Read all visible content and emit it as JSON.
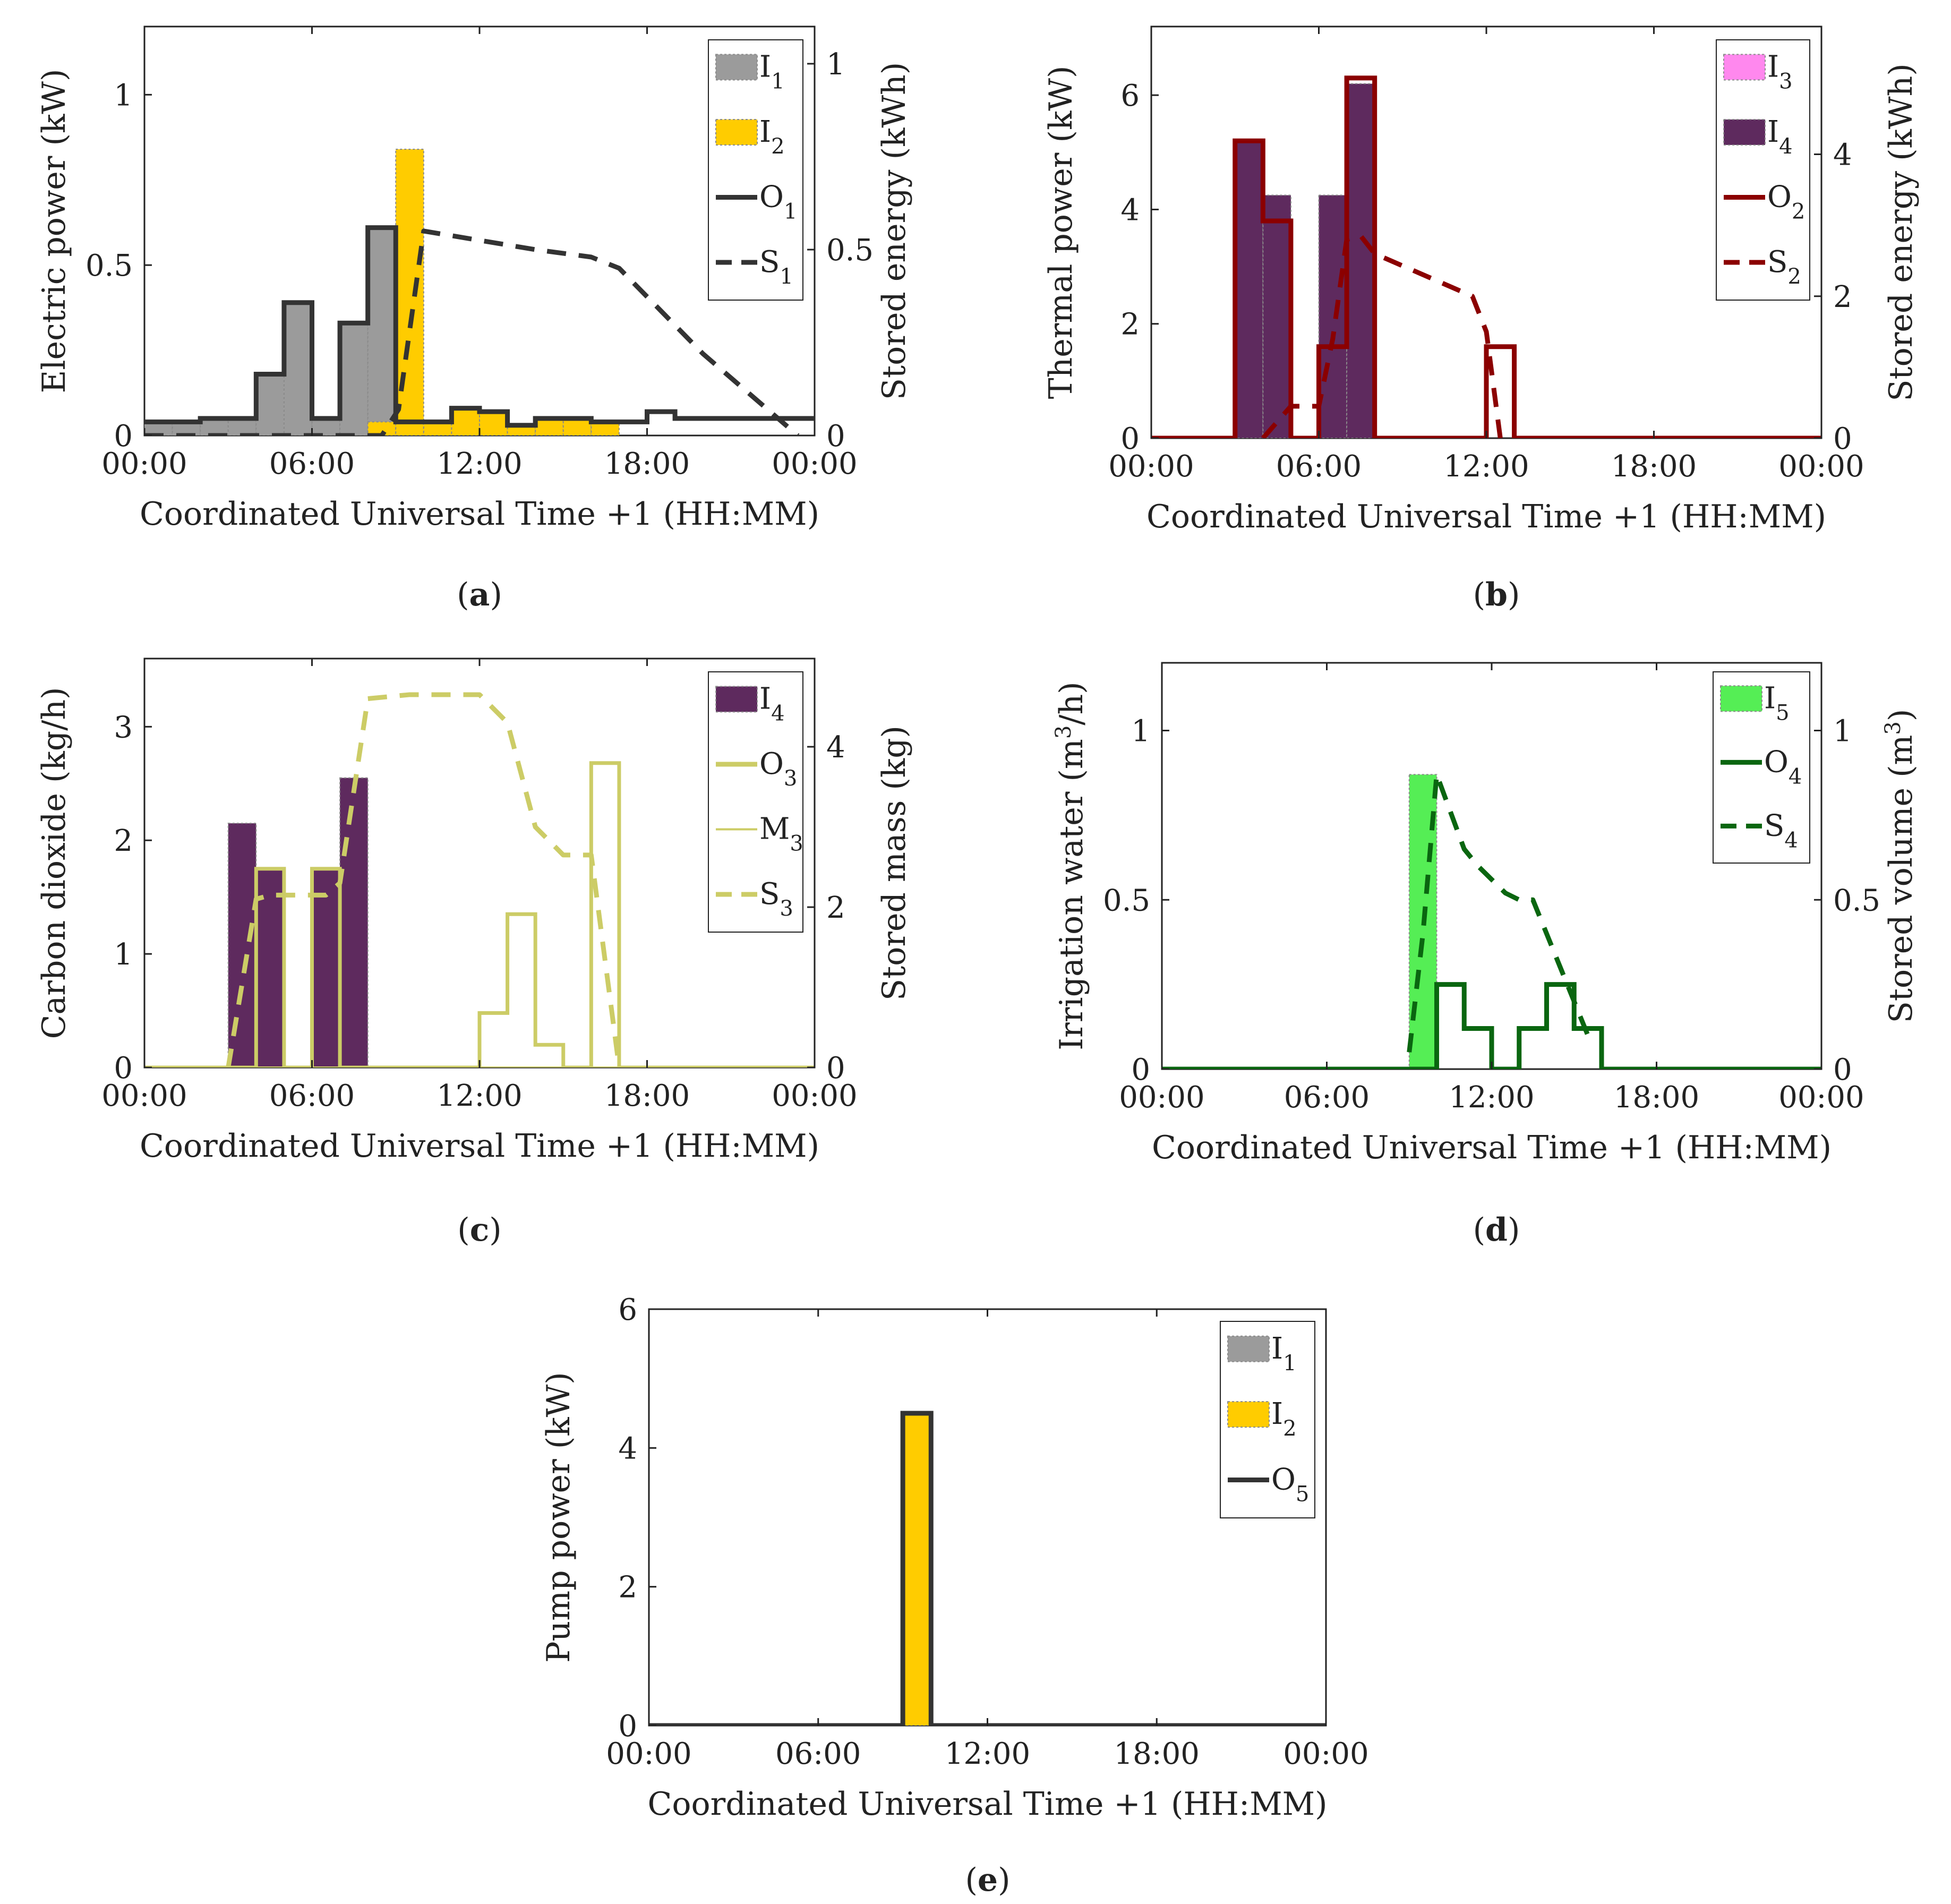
{
  "figure": {
    "x_ticks": [
      "00:00",
      "06:00",
      "12:00",
      "18:00",
      "00:00"
    ]
  },
  "colors": {
    "gray": "#9b9b9b",
    "yellow": "#ffcc00",
    "dark": "#333333",
    "magenta": "#ff88ee",
    "purple": "#5e2a5e",
    "red": "#8b0000",
    "olive": "#cccc66",
    "green": "#55ee55",
    "dkgreen": "#0a6610"
  },
  "chart_data": [
    {
      "id": "a",
      "type": "bar",
      "caption_open": "(",
      "caption_letter": "a",
      "caption_close": ")",
      "xlabel": "Coordinated Universal Time +1 (HH:MM)",
      "ylabel_left": "Electric power (kW)",
      "ylabel_right": "Stored energy (kWh)",
      "xlim": [
        0,
        24
      ],
      "ylim_left": [
        0,
        1.2
      ],
      "ylim_right": [
        0,
        1.1
      ],
      "yticks_left": [
        0,
        0.5,
        1
      ],
      "yticks_left_labels": [
        "0",
        "0.5",
        "1"
      ],
      "yticks_right": [
        0,
        0.5,
        1
      ],
      "yticks_right_labels": [
        "0",
        "0.5",
        "1"
      ],
      "legend": [
        {
          "base": "I",
          "sub": "1",
          "kind": "patch",
          "series": "I1"
        },
        {
          "base": "I",
          "sub": "2",
          "kind": "patch",
          "series": "I2"
        },
        {
          "base": "O",
          "sub": "1",
          "kind": "solid",
          "series": "O1"
        },
        {
          "base": "S",
          "sub": "1",
          "kind": "dash",
          "series": "S1"
        }
      ],
      "series": [
        {
          "name": "I1",
          "kind": "bars",
          "color": "gray",
          "axis": "left",
          "values": [
            0.04,
            0.04,
            0.05,
            0.05,
            0.18,
            0.39,
            0.05,
            0.33,
            0.61,
            0,
            0,
            0,
            0,
            0,
            0,
            0,
            0,
            0,
            0,
            0,
            0,
            0,
            0,
            0
          ]
        },
        {
          "name": "I2",
          "kind": "bars",
          "color": "yellow",
          "axis": "left",
          "values": [
            0,
            0,
            0,
            0,
            0,
            0,
            0,
            0,
            0.04,
            0.84,
            0.04,
            0.08,
            0.07,
            0.03,
            0.05,
            0.05,
            0.04,
            0,
            0,
            0,
            0,
            0,
            0,
            0
          ]
        },
        {
          "name": "O1",
          "kind": "step",
          "color": "dark",
          "axis": "left",
          "width": 9,
          "values": [
            0.04,
            0.04,
            0.05,
            0.05,
            0.18,
            0.39,
            0.05,
            0.33,
            0.61,
            0.04,
            0.04,
            0.08,
            0.07,
            0.03,
            0.05,
            0.05,
            0.04,
            0.04,
            0.07,
            0.05,
            0.05,
            0.05,
            0.05,
            0.05
          ]
        },
        {
          "name": "S1",
          "kind": "dash",
          "color": "dark",
          "axis": "right",
          "x": [
            0,
            8.5,
            9.1,
            10,
            14,
            16,
            17,
            20,
            23.4
          ],
          "y": [
            0,
            0,
            0.07,
            0.55,
            0.5,
            0.48,
            0.45,
            0.22,
            0
          ]
        }
      ]
    },
    {
      "id": "b",
      "type": "bar",
      "caption_open": "(",
      "caption_letter": "b",
      "caption_close": ")",
      "xlabel": "Coordinated Universal Time +1 (HH:MM)",
      "ylabel_left": "Thermal power  (kW)",
      "ylabel_right": "Stored energy (kWh)",
      "xlim": [
        0,
        24
      ],
      "ylim_left": [
        0,
        7.2
      ],
      "ylim_right": [
        0,
        5.8
      ],
      "yticks_left": [
        0,
        2,
        4,
        6
      ],
      "yticks_left_labels": [
        "0",
        "2",
        "4",
        "6"
      ],
      "yticks_right": [
        0,
        2,
        4
      ],
      "yticks_right_labels": [
        "0",
        "2",
        "4"
      ],
      "legend": [
        {
          "base": "I",
          "sub": "3",
          "kind": "patch",
          "series": "I3"
        },
        {
          "base": "I",
          "sub": "4",
          "kind": "patch",
          "series": "I4"
        },
        {
          "base": "O",
          "sub": "2",
          "kind": "solid",
          "series": "O2"
        },
        {
          "base": "S",
          "sub": "2",
          "kind": "dash",
          "series": "S2"
        }
      ],
      "series": [
        {
          "name": "I3",
          "kind": "bars",
          "color": "magenta",
          "axis": "left",
          "values": [
            0,
            0,
            0,
            0,
            0,
            0,
            0,
            0,
            0,
            0,
            0,
            0,
            0,
            0,
            0,
            0,
            0,
            0,
            0,
            0,
            0,
            0,
            0,
            0
          ]
        },
        {
          "name": "I4",
          "kind": "bars",
          "color": "purple",
          "axis": "left",
          "values": [
            0,
            0,
            0,
            5.2,
            4.25,
            0,
            4.25,
            6.2,
            0,
            0,
            0,
            0,
            0,
            0,
            0,
            0,
            0,
            0,
            0,
            0,
            0,
            0,
            0,
            0
          ]
        },
        {
          "name": "O2",
          "kind": "step",
          "color": "red",
          "axis": "left",
          "width": 9,
          "values": [
            0,
            0,
            0,
            5.2,
            3.8,
            0,
            1.6,
            6.3,
            0,
            0,
            0,
            0,
            1.6,
            0,
            0,
            0,
            0,
            0,
            0,
            0,
            0,
            0,
            0,
            0
          ]
        },
        {
          "name": "S2",
          "kind": "dash",
          "color": "red",
          "axis": "right",
          "x": [
            4,
            5,
            6,
            6.5,
            7,
            7.5,
            8,
            11.5,
            12,
            12.5
          ],
          "y": [
            0,
            0.45,
            0.45,
            1.4,
            2.8,
            2.85,
            2.6,
            2.0,
            1.5,
            0
          ]
        }
      ]
    },
    {
      "id": "c",
      "type": "bar",
      "caption_open": "(",
      "caption_letter": "c",
      "caption_close": ")",
      "xlabel": "Coordinated Universal Time +1 (HH:MM)",
      "ylabel_left": "Carbon dioxide (kg/h)",
      "ylabel_right": "Stored mass (kg)",
      "xlim": [
        0,
        24
      ],
      "ylim_left": [
        0,
        3.6
      ],
      "ylim_right": [
        0,
        5.1
      ],
      "yticks_left": [
        0,
        1,
        2,
        3
      ],
      "yticks_left_labels": [
        "0",
        "1",
        "2",
        "3"
      ],
      "yticks_right": [
        0,
        2,
        4
      ],
      "yticks_right_labels": [
        "0",
        "2",
        "4"
      ],
      "legend": [
        {
          "base": "I",
          "sub": "4",
          "kind": "patch",
          "series": "I4"
        },
        {
          "base": "O",
          "sub": "3",
          "kind": "solid",
          "series": "O3"
        },
        {
          "base": "M",
          "sub": "3",
          "kind": "thin",
          "series": "M3"
        },
        {
          "base": "S",
          "sub": "3",
          "kind": "dash",
          "series": "S3"
        }
      ],
      "series": [
        {
          "name": "I4",
          "kind": "bars",
          "color": "purple",
          "axis": "left",
          "values": [
            0,
            0,
            0,
            2.15,
            1.75,
            0,
            1.75,
            2.55,
            0,
            0,
            0,
            0,
            0,
            0,
            0,
            0,
            0,
            0,
            0,
            0,
            0,
            0,
            0,
            0
          ]
        },
        {
          "name": "O3",
          "kind": "step",
          "color": "olive",
          "axis": "left",
          "width": 7,
          "values": [
            0,
            0,
            0,
            0,
            1.75,
            0,
            1.75,
            0,
            0,
            0,
            0,
            0,
            0.48,
            1.35,
            0.2,
            0,
            2.68,
            0,
            0,
            0,
            0,
            0,
            0,
            0
          ]
        },
        {
          "name": "M3",
          "kind": "step",
          "color": "olive",
          "axis": "left",
          "width": 4,
          "values": [
            0,
            0,
            0,
            0,
            0,
            0,
            0,
            0,
            0,
            0,
            0,
            0,
            0,
            0,
            0,
            0,
            0,
            0,
            0,
            0,
            0,
            0,
            0,
            0
          ]
        },
        {
          "name": "S3",
          "kind": "dash",
          "color": "olive",
          "axis": "right",
          "x": [
            3,
            4,
            4.5,
            5,
            6.5,
            7,
            8,
            9.5,
            12,
            13,
            14,
            15,
            16,
            17
          ],
          "y": [
            0,
            2.1,
            2.15,
            2.15,
            2.15,
            2.3,
            4.6,
            4.65,
            4.65,
            4.3,
            3.0,
            2.65,
            2.65,
            0
          ]
        }
      ]
    },
    {
      "id": "d",
      "type": "bar",
      "caption_open": "(",
      "caption_letter": "d",
      "caption_close": ")",
      "xlabel": "Coordinated Universal Time +1 (HH:MM)",
      "ylabel_left_main": "Irrigation water (m",
      "ylabel_left_sup": "3",
      "ylabel_left_tail": "/h)",
      "ylabel_right_main": "Stored volume (m",
      "ylabel_right_sup": "3",
      "ylabel_right_tail": ")",
      "xlim": [
        0,
        24
      ],
      "ylim_left": [
        0,
        1.2
      ],
      "ylim_right": [
        0,
        1.2
      ],
      "yticks_left": [
        0,
        0.5,
        1
      ],
      "yticks_left_labels": [
        "0",
        "0.5",
        "1"
      ],
      "yticks_right": [
        0,
        0.5,
        1
      ],
      "yticks_right_labels": [
        "0",
        "0.5",
        "1"
      ],
      "legend": [
        {
          "base": "I",
          "sub": "5",
          "kind": "patch",
          "series": "I5"
        },
        {
          "base": "O",
          "sub": "4",
          "kind": "solid",
          "series": "O4"
        },
        {
          "base": "S",
          "sub": "4",
          "kind": "dash",
          "series": "S4"
        }
      ],
      "series": [
        {
          "name": "I5",
          "kind": "bars",
          "color": "green",
          "axis": "left",
          "values": [
            0,
            0,
            0,
            0,
            0,
            0,
            0,
            0,
            0,
            0.87,
            0,
            0,
            0,
            0,
            0,
            0,
            0,
            0,
            0,
            0,
            0,
            0,
            0,
            0
          ]
        },
        {
          "name": "O4",
          "kind": "step",
          "color": "dkgreen",
          "axis": "left",
          "width": 9,
          "values": [
            0,
            0,
            0,
            0,
            0,
            0,
            0,
            0,
            0,
            0,
            0.25,
            0.12,
            0,
            0.12,
            0.25,
            0.12,
            0,
            0,
            0,
            0,
            0,
            0,
            0,
            0
          ]
        },
        {
          "name": "S4",
          "kind": "dash",
          "color": "dkgreen",
          "axis": "right",
          "x": [
            9,
            9.5,
            10,
            11,
            11.5,
            12.5,
            13,
            13.5,
            14.5,
            15.5
          ],
          "y": [
            0.05,
            0.4,
            0.87,
            0.65,
            0.6,
            0.52,
            0.5,
            0.5,
            0.3,
            0.1
          ]
        }
      ]
    },
    {
      "id": "e",
      "type": "bar",
      "caption_open": "(",
      "caption_letter": "e",
      "caption_close": ")",
      "xlabel": "Coordinated Universal Time +1 (HH:MM)",
      "ylabel_left": "Pump power (kW)",
      "xlim": [
        0,
        24
      ],
      "ylim_left": [
        0,
        6
      ],
      "yticks_left": [
        0,
        2,
        4,
        6
      ],
      "yticks_left_labels": [
        "0",
        "2",
        "4",
        "6"
      ],
      "legend": [
        {
          "base": "I",
          "sub": "1",
          "kind": "patch",
          "series": "I1"
        },
        {
          "base": "I",
          "sub": "2",
          "kind": "patch",
          "series": "I2"
        },
        {
          "base": "O",
          "sub": "5",
          "kind": "solid",
          "series": "O5"
        }
      ],
      "series": [
        {
          "name": "I1",
          "kind": "bars",
          "color": "gray",
          "axis": "left",
          "values": [
            0,
            0,
            0,
            0,
            0,
            0,
            0,
            0,
            0,
            0,
            0,
            0,
            0,
            0,
            0,
            0,
            0,
            0,
            0,
            0,
            0,
            0,
            0,
            0
          ]
        },
        {
          "name": "I2",
          "kind": "bars",
          "color": "yellow",
          "axis": "left",
          "values": [
            0,
            0,
            0,
            0,
            0,
            0,
            0,
            0,
            0,
            4.5,
            0,
            0,
            0,
            0,
            0,
            0,
            0,
            0,
            0,
            0,
            0,
            0,
            0,
            0
          ]
        },
        {
          "name": "O5",
          "kind": "step",
          "color": "dark",
          "axis": "left",
          "width": 9,
          "values": [
            0,
            0,
            0,
            0,
            0,
            0,
            0,
            0,
            0,
            4.5,
            0,
            0,
            0,
            0,
            0,
            0,
            0,
            0,
            0,
            0,
            0,
            0,
            0,
            0
          ]
        }
      ]
    }
  ]
}
